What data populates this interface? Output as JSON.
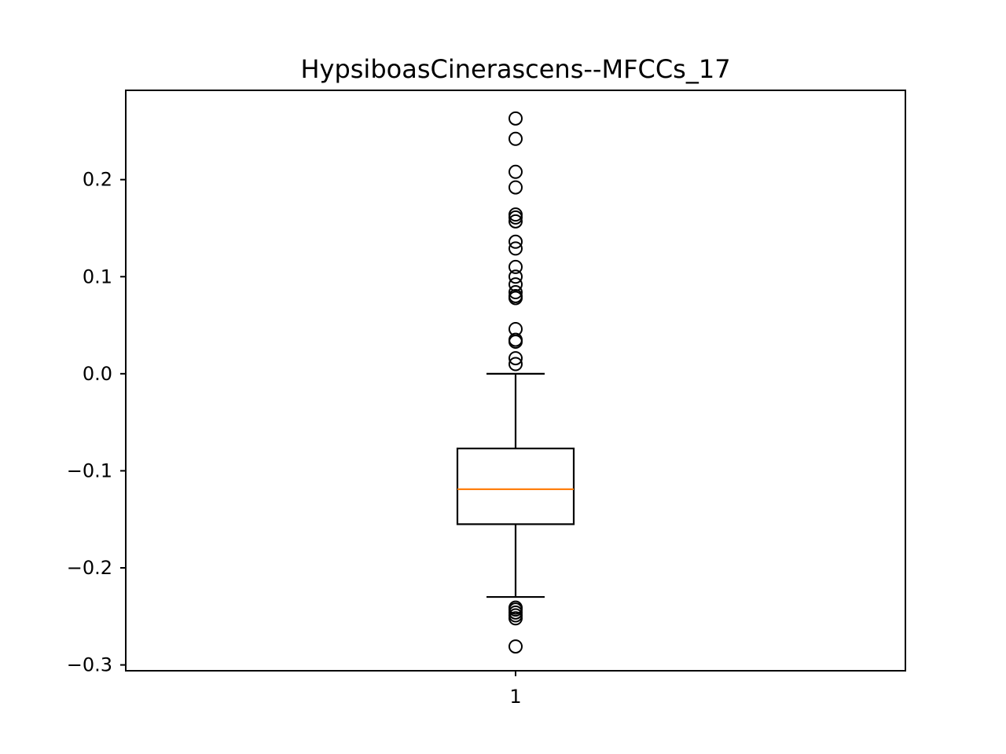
{
  "chart_data": {
    "type": "boxplot",
    "title": "HypsiboasCinerascens--MFCCs_17",
    "xlabel": "",
    "ylabel": "",
    "categories": [
      "1"
    ],
    "ylim": [
      -0.306,
      0.292
    ],
    "yticks": [
      -0.3,
      -0.2,
      -0.1,
      0.0,
      0.1,
      0.2
    ],
    "ytick_labels": [
      "−0.3",
      "−0.2",
      "−0.1",
      "0.0",
      "0.1",
      "0.2"
    ],
    "grid": false,
    "boxes": [
      {
        "label": "1",
        "whisker_low": -0.23,
        "q1": -0.155,
        "median": -0.119,
        "q3": -0.077,
        "whisker_high": 0.0,
        "fliers": [
          0.263,
          0.242,
          0.208,
          0.192,
          0.164,
          0.161,
          0.157,
          0.136,
          0.129,
          0.11,
          0.1,
          0.092,
          0.084,
          0.08,
          0.078,
          0.046,
          0.035,
          0.033,
          0.016,
          0.01,
          -0.241,
          -0.243,
          -0.246,
          -0.249,
          -0.252,
          -0.281
        ]
      }
    ],
    "colors": {
      "median": "#ff7f0e",
      "box": "#000000"
    }
  }
}
